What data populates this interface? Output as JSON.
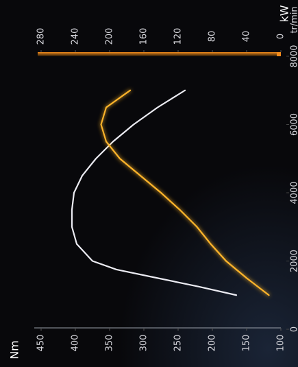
{
  "chart_data": {
    "type": "line",
    "x": [
      1000,
      1250,
      1500,
      1750,
      2000,
      2500,
      3000,
      3500,
      4000,
      4500,
      5000,
      5500,
      6000,
      6500,
      7000
    ],
    "xlim": [
      0,
      8000
    ],
    "xticks": [
      0,
      2000,
      4000,
      6000,
      8000
    ],
    "x_label": "tr/min",
    "y_label": "Nm",
    "y2_label": "kW",
    "ylim": [
      100,
      450
    ],
    "yticks": [
      100,
      150,
      200,
      250,
      300,
      350,
      400,
      450
    ],
    "y2lim": [
      0,
      280
    ],
    "y2ticks": [
      0,
      40,
      80,
      120,
      160,
      200,
      240,
      280
    ],
    "y2_color": "#f08a1c",
    "grid": false,
    "series": [
      {
        "color": "#ebebf2",
        "axis": "y",
        "values": [
          165,
          220,
          280,
          340,
          375,
          398,
          405,
          405,
          402,
          390,
          370,
          345,
          315,
          280,
          240
        ]
      },
      {
        "color": "#ffb52a",
        "axis": "y2",
        "values": [
          14,
          27,
          40,
          52,
          64,
          82,
          98,
          118,
          140,
          164,
          188,
          204,
          210,
          204,
          176
        ]
      }
    ]
  }
}
